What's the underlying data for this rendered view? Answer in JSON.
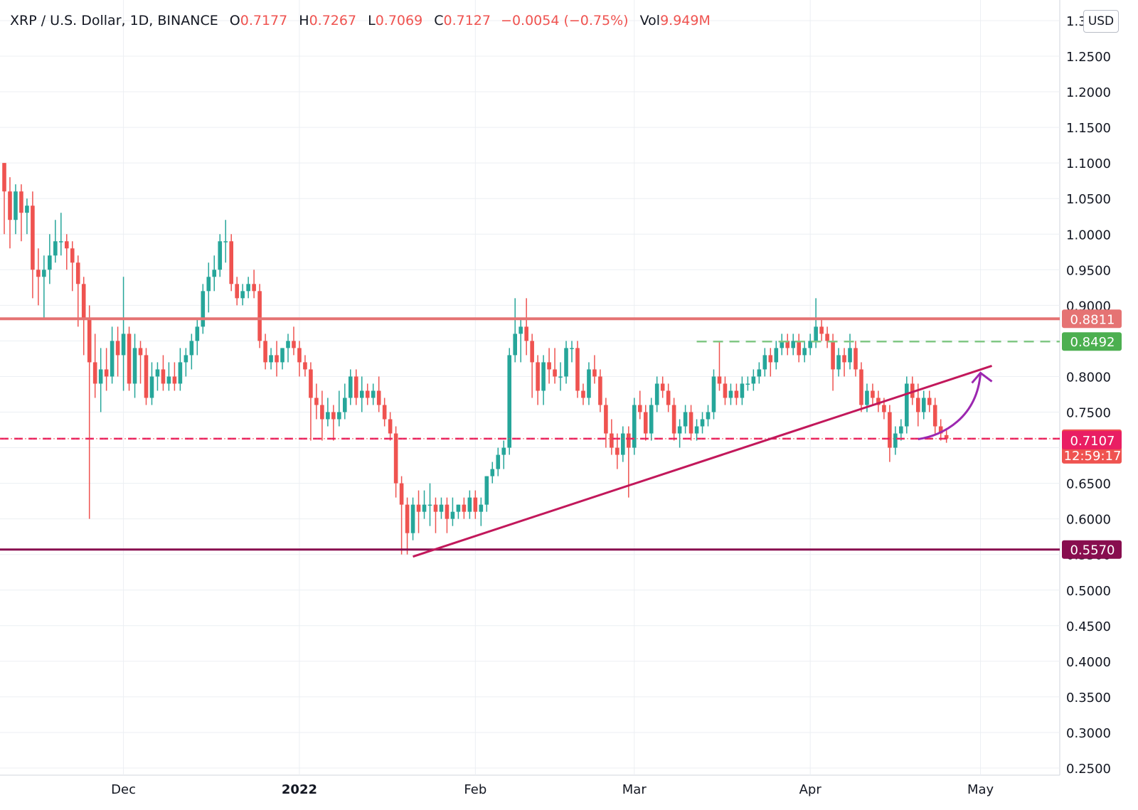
{
  "header": {
    "symbol": "XRP / U.S. Dollar, 1D, BINANCE",
    "open_label": "O",
    "open": "0.7177",
    "high_label": "H",
    "high": "0.7267",
    "low_label": "L",
    "low": "0.7069",
    "close_label": "C",
    "close": "0.7127",
    "change": "−0.0054 (−0.75%)",
    "vol_label": "Vol",
    "vol": "9.949M"
  },
  "currency_button": "USD",
  "colors": {
    "up": "#26a69a",
    "down": "#ef5350",
    "resistance": "#e57373",
    "support": "#880e4f",
    "trendline": "#c2185b",
    "target": "#81c784",
    "arrow": "#9c27b0",
    "current": "#ef5350",
    "pink": "#e91e63",
    "grid": "#eceff3"
  },
  "chart_data": {
    "type": "candlestick",
    "symbol": "XRP / U.S. Dollar",
    "interval": "1D",
    "exchange": "BINANCE",
    "ylim": [
      0.225,
      1.275
    ],
    "y_ticks": [
      "0.2500",
      "0.3000",
      "0.3500",
      "0.4000",
      "0.4500",
      "0.5000",
      "0.5500",
      "0.6000",
      "0.6500",
      "0.7000",
      "0.7500",
      "0.8000",
      "0.8500",
      "0.9000",
      "0.9500",
      "1.0000",
      "1.0500",
      "1.1000",
      "1.1500",
      "1.2000",
      "1.2500",
      "1.3000"
    ],
    "x_ticks": [
      {
        "label": "Dec",
        "date": "2021-12-01"
      },
      {
        "label": "2022",
        "date": "2022-01-01"
      },
      {
        "label": "Feb",
        "date": "2022-02-01"
      },
      {
        "label": "Mar",
        "date": "2022-03-01"
      },
      {
        "label": "Apr",
        "date": "2022-04-01"
      },
      {
        "label": "May",
        "date": "2022-05-01"
      }
    ],
    "start_date": "2021-11-10",
    "candles": [
      [
        1.1,
        1.1,
        1.0,
        1.06
      ],
      [
        1.06,
        1.08,
        0.98,
        1.02
      ],
      [
        1.02,
        1.07,
        1.0,
        1.06
      ],
      [
        1.06,
        1.07,
        0.99,
        1.03
      ],
      [
        1.03,
        1.05,
        1.0,
        1.04
      ],
      [
        1.04,
        1.06,
        0.91,
        0.95
      ],
      [
        0.95,
        0.98,
        0.9,
        0.94
      ],
      [
        0.94,
        0.97,
        0.88,
        0.95
      ],
      [
        0.95,
        1.0,
        0.93,
        0.97
      ],
      [
        0.97,
        1.02,
        0.96,
        0.99
      ],
      [
        0.99,
        1.03,
        0.97,
        0.99
      ],
      [
        0.99,
        1.0,
        0.95,
        0.98
      ],
      [
        0.98,
        0.99,
        0.92,
        0.96
      ],
      [
        0.96,
        0.97,
        0.87,
        0.93
      ],
      [
        0.93,
        0.94,
        0.83,
        0.88
      ],
      [
        0.88,
        0.9,
        0.6,
        0.82
      ],
      [
        0.82,
        0.86,
        0.77,
        0.79
      ],
      [
        0.79,
        0.84,
        0.75,
        0.81
      ],
      [
        0.81,
        0.84,
        0.78,
        0.8
      ],
      [
        0.8,
        0.87,
        0.79,
        0.85
      ],
      [
        0.85,
        0.87,
        0.8,
        0.83
      ],
      [
        0.83,
        0.94,
        0.78,
        0.86
      ],
      [
        0.86,
        0.87,
        0.78,
        0.79
      ],
      [
        0.79,
        0.86,
        0.77,
        0.84
      ],
      [
        0.84,
        0.85,
        0.79,
        0.83
      ],
      [
        0.83,
        0.84,
        0.76,
        0.77
      ],
      [
        0.77,
        0.82,
        0.76,
        0.8
      ],
      [
        0.8,
        0.82,
        0.78,
        0.81
      ],
      [
        0.81,
        0.83,
        0.78,
        0.79
      ],
      [
        0.79,
        0.82,
        0.78,
        0.8
      ],
      [
        0.8,
        0.82,
        0.78,
        0.79
      ],
      [
        0.79,
        0.84,
        0.78,
        0.82
      ],
      [
        0.82,
        0.84,
        0.8,
        0.83
      ],
      [
        0.83,
        0.86,
        0.81,
        0.85
      ],
      [
        0.85,
        0.88,
        0.83,
        0.87
      ],
      [
        0.87,
        0.93,
        0.86,
        0.92
      ],
      [
        0.92,
        0.96,
        0.89,
        0.94
      ],
      [
        0.94,
        0.97,
        0.92,
        0.95
      ],
      [
        0.95,
        1.0,
        0.94,
        0.99
      ],
      [
        0.99,
        1.02,
        0.96,
        0.99
      ],
      [
        0.99,
        1.0,
        0.92,
        0.93
      ],
      [
        0.93,
        0.94,
        0.9,
        0.91
      ],
      [
        0.91,
        0.93,
        0.9,
        0.92
      ],
      [
        0.92,
        0.94,
        0.91,
        0.93
      ],
      [
        0.93,
        0.95,
        0.91,
        0.92
      ],
      [
        0.92,
        0.93,
        0.84,
        0.85
      ],
      [
        0.85,
        0.86,
        0.81,
        0.82
      ],
      [
        0.82,
        0.84,
        0.81,
        0.83
      ],
      [
        0.83,
        0.85,
        0.8,
        0.82
      ],
      [
        0.82,
        0.84,
        0.81,
        0.84
      ],
      [
        0.84,
        0.86,
        0.82,
        0.85
      ],
      [
        0.85,
        0.87,
        0.83,
        0.84
      ],
      [
        0.84,
        0.85,
        0.8,
        0.82
      ],
      [
        0.82,
        0.83,
        0.8,
        0.81
      ],
      [
        0.81,
        0.82,
        0.71,
        0.77
      ],
      [
        0.77,
        0.79,
        0.74,
        0.76
      ],
      [
        0.76,
        0.78,
        0.71,
        0.74
      ],
      [
        0.74,
        0.77,
        0.73,
        0.75
      ],
      [
        0.75,
        0.76,
        0.71,
        0.74
      ],
      [
        0.74,
        0.78,
        0.73,
        0.75
      ],
      [
        0.75,
        0.79,
        0.74,
        0.77
      ],
      [
        0.77,
        0.81,
        0.76,
        0.8
      ],
      [
        0.8,
        0.81,
        0.76,
        0.77
      ],
      [
        0.77,
        0.8,
        0.75,
        0.78
      ],
      [
        0.78,
        0.79,
        0.76,
        0.77
      ],
      [
        0.77,
        0.79,
        0.76,
        0.78
      ],
      [
        0.78,
        0.8,
        0.75,
        0.76
      ],
      [
        0.76,
        0.77,
        0.73,
        0.74
      ],
      [
        0.74,
        0.75,
        0.71,
        0.72
      ],
      [
        0.72,
        0.73,
        0.63,
        0.65
      ],
      [
        0.65,
        0.66,
        0.55,
        0.62
      ],
      [
        0.62,
        0.63,
        0.55,
        0.58
      ],
      [
        0.58,
        0.63,
        0.57,
        0.62
      ],
      [
        0.62,
        0.64,
        0.58,
        0.61
      ],
      [
        0.61,
        0.64,
        0.6,
        0.62
      ],
      [
        0.62,
        0.65,
        0.59,
        0.62
      ],
      [
        0.62,
        0.63,
        0.58,
        0.61
      ],
      [
        0.61,
        0.63,
        0.6,
        0.62
      ],
      [
        0.62,
        0.63,
        0.58,
        0.6
      ],
      [
        0.6,
        0.63,
        0.59,
        0.61
      ],
      [
        0.61,
        0.62,
        0.6,
        0.62
      ],
      [
        0.62,
        0.63,
        0.6,
        0.61
      ],
      [
        0.61,
        0.64,
        0.6,
        0.63
      ],
      [
        0.63,
        0.64,
        0.6,
        0.61
      ],
      [
        0.61,
        0.63,
        0.59,
        0.62
      ],
      [
        0.62,
        0.66,
        0.61,
        0.66
      ],
      [
        0.66,
        0.68,
        0.65,
        0.67
      ],
      [
        0.67,
        0.7,
        0.66,
        0.69
      ],
      [
        0.69,
        0.71,
        0.67,
        0.7
      ],
      [
        0.7,
        0.84,
        0.69,
        0.83
      ],
      [
        0.83,
        0.91,
        0.82,
        0.86
      ],
      [
        0.86,
        0.88,
        0.82,
        0.87
      ],
      [
        0.87,
        0.91,
        0.83,
        0.85
      ],
      [
        0.85,
        0.86,
        0.77,
        0.82
      ],
      [
        0.82,
        0.83,
        0.76,
        0.78
      ],
      [
        0.78,
        0.83,
        0.76,
        0.82
      ],
      [
        0.82,
        0.84,
        0.79,
        0.81
      ],
      [
        0.81,
        0.84,
        0.79,
        0.8
      ],
      [
        0.8,
        0.82,
        0.78,
        0.8
      ],
      [
        0.8,
        0.85,
        0.79,
        0.84
      ],
      [
        0.84,
        0.85,
        0.82,
        0.84
      ],
      [
        0.84,
        0.85,
        0.77,
        0.78
      ],
      [
        0.78,
        0.79,
        0.76,
        0.77
      ],
      [
        0.77,
        0.82,
        0.76,
        0.81
      ],
      [
        0.81,
        0.83,
        0.79,
        0.8
      ],
      [
        0.8,
        0.81,
        0.75,
        0.76
      ],
      [
        0.76,
        0.77,
        0.7,
        0.72
      ],
      [
        0.72,
        0.74,
        0.69,
        0.7
      ],
      [
        0.7,
        0.72,
        0.67,
        0.69
      ],
      [
        0.69,
        0.73,
        0.68,
        0.72
      ],
      [
        0.72,
        0.73,
        0.63,
        0.7
      ],
      [
        0.7,
        0.77,
        0.69,
        0.76
      ],
      [
        0.76,
        0.78,
        0.74,
        0.75
      ],
      [
        0.75,
        0.76,
        0.71,
        0.72
      ],
      [
        0.72,
        0.77,
        0.71,
        0.76
      ],
      [
        0.76,
        0.8,
        0.75,
        0.79
      ],
      [
        0.79,
        0.8,
        0.77,
        0.78
      ],
      [
        0.78,
        0.79,
        0.75,
        0.76
      ],
      [
        0.76,
        0.77,
        0.71,
        0.72
      ],
      [
        0.72,
        0.74,
        0.7,
        0.73
      ],
      [
        0.73,
        0.76,
        0.72,
        0.75
      ],
      [
        0.75,
        0.76,
        0.71,
        0.72
      ],
      [
        0.72,
        0.74,
        0.71,
        0.73
      ],
      [
        0.73,
        0.75,
        0.72,
        0.74
      ],
      [
        0.74,
        0.76,
        0.73,
        0.75
      ],
      [
        0.75,
        0.81,
        0.74,
        0.8
      ],
      [
        0.8,
        0.85,
        0.78,
        0.79
      ],
      [
        0.79,
        0.8,
        0.76,
        0.77
      ],
      [
        0.77,
        0.79,
        0.76,
        0.78
      ],
      [
        0.78,
        0.79,
        0.76,
        0.77
      ],
      [
        0.77,
        0.8,
        0.76,
        0.79
      ],
      [
        0.79,
        0.8,
        0.78,
        0.79
      ],
      [
        0.79,
        0.81,
        0.78,
        0.8
      ],
      [
        0.8,
        0.82,
        0.79,
        0.81
      ],
      [
        0.81,
        0.84,
        0.8,
        0.83
      ],
      [
        0.83,
        0.84,
        0.8,
        0.82
      ],
      [
        0.82,
        0.85,
        0.81,
        0.84
      ],
      [
        0.84,
        0.86,
        0.83,
        0.85
      ],
      [
        0.85,
        0.86,
        0.83,
        0.84
      ],
      [
        0.84,
        0.86,
        0.83,
        0.85
      ],
      [
        0.85,
        0.86,
        0.82,
        0.83
      ],
      [
        0.83,
        0.85,
        0.82,
        0.84
      ],
      [
        0.84,
        0.86,
        0.83,
        0.85
      ],
      [
        0.85,
        0.91,
        0.84,
        0.87
      ],
      [
        0.87,
        0.88,
        0.85,
        0.86
      ],
      [
        0.86,
        0.87,
        0.84,
        0.85
      ],
      [
        0.85,
        0.86,
        0.78,
        0.81
      ],
      [
        0.81,
        0.84,
        0.8,
        0.83
      ],
      [
        0.83,
        0.84,
        0.8,
        0.82
      ],
      [
        0.82,
        0.86,
        0.81,
        0.84
      ],
      [
        0.84,
        0.85,
        0.8,
        0.81
      ],
      [
        0.81,
        0.82,
        0.75,
        0.76
      ],
      [
        0.76,
        0.79,
        0.75,
        0.78
      ],
      [
        0.78,
        0.79,
        0.76,
        0.77
      ],
      [
        0.77,
        0.78,
        0.75,
        0.76
      ],
      [
        0.76,
        0.77,
        0.74,
        0.75
      ],
      [
        0.75,
        0.76,
        0.68,
        0.7
      ],
      [
        0.7,
        0.73,
        0.69,
        0.72
      ],
      [
        0.72,
        0.74,
        0.71,
        0.73
      ],
      [
        0.73,
        0.8,
        0.72,
        0.79
      ],
      [
        0.79,
        0.8,
        0.76,
        0.77
      ],
      [
        0.77,
        0.79,
        0.73,
        0.75
      ],
      [
        0.75,
        0.78,
        0.74,
        0.77
      ],
      [
        0.77,
        0.78,
        0.75,
        0.76
      ],
      [
        0.76,
        0.77,
        0.72,
        0.73
      ],
      [
        0.73,
        0.74,
        0.71,
        0.72
      ],
      [
        0.7177,
        0.7267,
        0.7069,
        0.7127
      ]
    ],
    "lines": [
      {
        "name": "resistance",
        "price": 0.8811,
        "label": "0.8811"
      },
      {
        "name": "target",
        "price": 0.8492,
        "label": "0.8492",
        "style": "dashed",
        "from_date": "2022-03-12"
      },
      {
        "name": "support",
        "price": 0.557,
        "label": "0.5570"
      },
      {
        "name": "current-price",
        "price": 0.7127,
        "label": "0.7127",
        "countdown": "12:59:17",
        "style": "dashed"
      },
      {
        "name": "pink-level",
        "price": 0.7107,
        "label": "0.7107"
      }
    ],
    "trendline": {
      "from": [
        "2022-01-21",
        0.547
      ],
      "to": [
        "2022-05-03",
        0.815
      ]
    },
    "arrow": {
      "from": [
        "2022-04-20",
        0.712
      ],
      "to": [
        "2022-05-01",
        0.805
      ]
    }
  }
}
